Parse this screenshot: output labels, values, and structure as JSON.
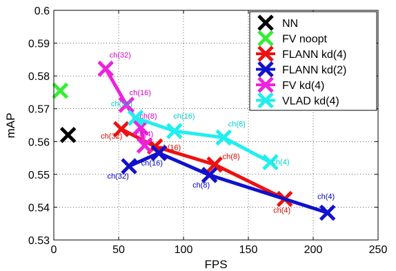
{
  "chart_data": {
    "type": "line",
    "title": "",
    "xlabel": "FPS",
    "ylabel": "mAP",
    "xlim": [
      0,
      250
    ],
    "ylim": [
      0.53,
      0.6
    ],
    "xticks": [
      "0",
      "50",
      "100",
      "150",
      "200",
      "250"
    ],
    "yticks": [
      "0.53",
      "0.54",
      "0.55",
      "0.56",
      "0.57",
      "0.58",
      "0.59",
      "0.6"
    ],
    "xtick_values": [
      0,
      50,
      100,
      150,
      200,
      250
    ],
    "ytick_values": [
      0.53,
      0.54,
      0.55,
      0.56,
      0.57,
      0.58,
      0.59,
      0.6
    ],
    "grid": true,
    "legend_position": "top-right",
    "series": [
      {
        "name": "NN",
        "color": "#000000",
        "marker": "x",
        "line": false,
        "points": [
          {
            "x": 11,
            "y": 0.562,
            "label": ""
          }
        ]
      },
      {
        "name": "FV noopt",
        "color": "#33ee33",
        "marker": "x",
        "line": false,
        "points": [
          {
            "x": 5,
            "y": 0.5755,
            "label": ""
          }
        ]
      },
      {
        "name": "FLANN kd(4)",
        "color": "#ee1111",
        "marker": "x",
        "line": true,
        "points": [
          {
            "x": 52,
            "y": 0.5638,
            "label": "ch(32)"
          },
          {
            "x": 78,
            "y": 0.5585,
            "label": "ch(16)"
          },
          {
            "x": 124,
            "y": 0.553,
            "label": "ch(8)"
          },
          {
            "x": 178,
            "y": 0.5425,
            "label": "ch(4)"
          }
        ]
      },
      {
        "name": "FLANN kd(2)",
        "color": "#1111cc",
        "marker": "x",
        "line": true,
        "points": [
          {
            "x": 58,
            "y": 0.5525,
            "label": "ch(32)"
          },
          {
            "x": 81,
            "y": 0.5565,
            "label": "ch(16)"
          },
          {
            "x": 120,
            "y": 0.5498,
            "label": "ch(8)"
          },
          {
            "x": 211,
            "y": 0.5383,
            "label": "ch(4)"
          }
        ]
      },
      {
        "name": "FV kd(4)",
        "color": "#ee22dd",
        "marker": "x",
        "line": true,
        "points": [
          {
            "x": 40,
            "y": 0.5822,
            "label": "ch(32)"
          },
          {
            "x": 56,
            "y": 0.5712,
            "label": "ch(16)"
          },
          {
            "x": 67,
            "y": 0.5643,
            "label": "ch(8)"
          },
          {
            "x": 70,
            "y": 0.5588,
            "label": "ch(4)"
          }
        ]
      },
      {
        "name": "VLAD kd(4)",
        "color": "#22eeee",
        "marker": "x",
        "line": true,
        "points": [
          {
            "x": 63,
            "y": 0.5672,
            "label": "ch(32)"
          },
          {
            "x": 93,
            "y": 0.5632,
            "label": "ch(16)"
          },
          {
            "x": 131,
            "y": 0.5612,
            "label": "ch(8)"
          },
          {
            "x": 167,
            "y": 0.5537,
            "label": "ch(4)"
          }
        ]
      }
    ]
  }
}
